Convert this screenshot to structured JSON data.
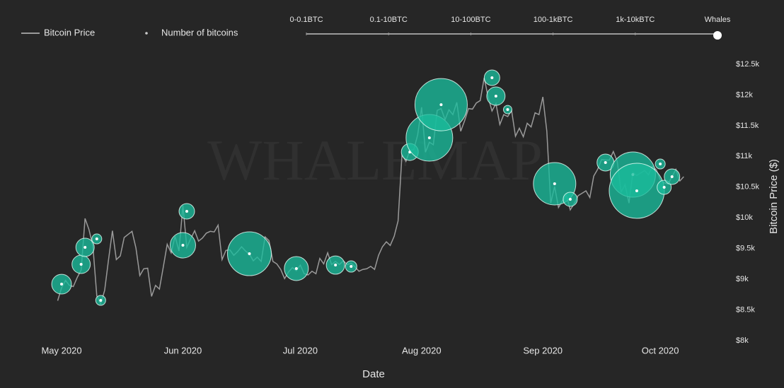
{
  "chart_data": {
    "type": "line-bubble",
    "watermark": "WHALEMAP",
    "x_label": "Date",
    "y_label": "Bitcoin Price ($)",
    "filter": {
      "options": [
        "0-0.1BTC",
        "0.1-10BTC",
        "10-100BTC",
        "100-1kBTC",
        "1k-10kBTC",
        "Whales"
      ],
      "selected": 5
    },
    "categories": [
      null,
      "May 2020",
      null,
      null,
      null,
      null,
      null,
      null,
      null,
      null,
      null,
      null,
      null,
      null,
      null,
      null,
      null,
      null,
      null,
      null,
      null,
      null,
      null,
      null,
      null,
      null,
      null,
      null,
      null,
      null,
      null,
      null,
      "Jun 2020",
      null,
      null,
      null,
      null,
      null,
      null,
      null,
      null,
      null,
      null,
      null,
      null,
      null,
      null,
      null,
      null,
      null,
      null,
      null,
      null,
      null,
      null,
      null,
      null,
      null,
      null,
      null,
      null,
      null,
      "Jul 2020",
      null,
      null,
      null,
      null,
      null,
      null,
      null,
      null,
      null,
      null,
      null,
      null,
      null,
      null,
      null,
      null,
      null,
      null,
      null,
      null,
      null,
      null,
      null,
      null,
      null,
      null,
      null,
      null,
      null,
      null,
      "Aug 2020",
      null,
      null,
      null,
      null,
      null,
      null,
      null,
      null,
      null,
      null,
      null,
      null,
      null,
      null,
      null,
      null,
      null,
      null,
      null,
      null,
      null,
      null,
      null,
      null,
      null,
      null,
      null,
      null,
      null,
      null,
      "Sep 2020",
      null,
      null,
      null,
      null,
      null,
      null,
      null,
      null,
      null,
      null,
      null,
      null,
      null,
      null,
      null,
      null,
      null,
      null,
      null,
      null,
      null,
      null,
      null,
      null,
      null,
      null,
      null,
      null,
      null,
      "Oct 2020",
      null,
      null,
      null,
      null,
      null,
      null
    ],
    "series": [
      {
        "name": "Bitcoin Price",
        "color": "#9a9a9a",
        "values": [
          8650,
          8860,
          8980,
          8900,
          8880,
          9030,
          9150,
          9990,
          9810,
          9540,
          8730,
          8600,
          8820,
          9320,
          9790,
          9320,
          9380,
          9680,
          9730,
          9780,
          9510,
          9060,
          9170,
          9180,
          8720,
          8900,
          8840,
          9200,
          9570,
          9430,
          9700,
          9460,
          10200,
          9520,
          9660,
          9790,
          9620,
          9670,
          9750,
          9780,
          9770,
          9880,
          9320,
          9470,
          9480,
          9390,
          9450,
          9530,
          9460,
          9410,
          9300,
          9360,
          9290,
          9690,
          9630,
          9290,
          9250,
          9160,
          9010,
          9120,
          9190,
          9140,
          9230,
          9090,
          9070,
          9130,
          9090,
          9340,
          9250,
          9430,
          9240,
          9290,
          9240,
          9300,
          9240,
          9260,
          9200,
          9130,
          9160,
          9170,
          9210,
          9160,
          9390,
          9530,
          9610,
          9550,
          9700,
          9950,
          11030,
          10920,
          11100,
          11110,
          11350,
          11800,
          11070,
          11230,
          11190,
          11750,
          11780,
          11600,
          11760,
          11680,
          11880,
          11410,
          11580,
          11780,
          11770,
          11870,
          11910,
          12280,
          11970,
          11740,
          11860,
          11520,
          11680,
          11650,
          11750,
          11330,
          11460,
          11320,
          11540,
          11480,
          11710,
          11680,
          11970,
          11410,
          10240,
          10510,
          10170,
          10280,
          10370,
          10130,
          10230,
          10360,
          10400,
          10440,
          10330,
          10680,
          10790,
          10950,
          10940,
          10940,
          11080,
          10920,
          10420,
          10540,
          10240,
          10740,
          10690,
          10730,
          10770,
          10700,
          10840,
          10780,
          10620,
          10570,
          10550,
          10670,
          10790,
          10600,
          10670
        ]
      },
      {
        "name": "Number of bitcoins",
        "color": "#1abc9c",
        "values": [
          null,
          8920,
          null,
          null,
          null,
          null,
          9243,
          9519,
          null,
          null,
          9657,
          8656,
          null,
          null,
          null,
          null,
          null,
          null,
          null,
          null,
          null,
          null,
          null,
          null,
          null,
          null,
          null,
          null,
          null,
          null,
          null,
          null,
          9553,
          10106,
          null,
          null,
          null,
          null,
          null,
          null,
          null,
          null,
          null,
          null,
          null,
          null,
          null,
          null,
          null,
          9415,
          null,
          null,
          null,
          null,
          null,
          null,
          null,
          null,
          null,
          null,
          null,
          9174,
          null,
          null,
          null,
          null,
          null,
          null,
          null,
          null,
          null,
          9231,
          null,
          null,
          null,
          9208,
          null,
          null,
          null,
          null,
          null,
          null,
          null,
          null,
          null,
          null,
          null,
          null,
          null,
          null,
          11072,
          null,
          null,
          null,
          null,
          11303,
          null,
          null,
          11843,
          null,
          null,
          null,
          null,
          null,
          null,
          null,
          null,
          null,
          null,
          null,
          null,
          12281,
          11982,
          null,
          null,
          11763,
          null,
          null,
          null,
          null,
          null,
          null,
          null,
          null,
          null,
          null,
          null,
          10555,
          null,
          null,
          null,
          10302,
          null,
          null,
          null,
          null,
          null,
          null,
          null,
          null,
          10900,
          null,
          null,
          null,
          null,
          null,
          null,
          10704,
          10440,
          null,
          null,
          null,
          null,
          null,
          10877,
          10497,
          null,
          10670,
          null,
          null,
          null
        ],
        "sizes": [
          null,
          1430,
          null,
          null,
          null,
          null,
          1230,
          1230,
          null,
          null,
          360,
          360,
          null,
          null,
          null,
          null,
          null,
          null,
          null,
          null,
          null,
          null,
          null,
          null,
          null,
          null,
          null,
          null,
          null,
          null,
          null,
          null,
          2370,
          880,
          null,
          null,
          null,
          null,
          null,
          null,
          null,
          null,
          null,
          null,
          null,
          null,
          null,
          null,
          null,
          7020,
          null,
          null,
          null,
          null,
          null,
          null,
          null,
          null,
          null,
          null,
          null,
          2110,
          null,
          null,
          null,
          null,
          null,
          null,
          null,
          null,
          null,
          1230,
          null,
          null,
          null,
          470,
          null,
          null,
          null,
          null,
          null,
          null,
          null,
          null,
          null,
          null,
          null,
          null,
          null,
          null,
          1050,
          null,
          null,
          null,
          null,
          7950,
          null,
          null,
          10000,
          null,
          null,
          null,
          null,
          null,
          null,
          null,
          null,
          null,
          null,
          null,
          null,
          880,
          1230,
          null,
          null,
          260,
          null,
          null,
          null,
          null,
          null,
          null,
          null,
          null,
          null,
          null,
          null,
          6570,
          null,
          null,
          null,
          730,
          null,
          null,
          null,
          null,
          null,
          null,
          null,
          null,
          1050,
          null,
          null,
          null,
          null,
          null,
          null,
          7480,
          11110,
          null,
          null,
          null,
          null,
          null,
          360,
          730,
          null,
          880,
          null,
          null,
          null
        ]
      }
    ],
    "ylim": [
      8000,
      12500
    ],
    "yticks": [
      {
        "value": 8000,
        "label": "$8k"
      },
      {
        "value": 8500,
        "label": "$8.5k"
      },
      {
        "value": 9000,
        "label": "$9k"
      },
      {
        "value": 9500,
        "label": "$9.5k"
      },
      {
        "value": 10000,
        "label": "$10k"
      },
      {
        "value": 10500,
        "label": "$10.5k"
      },
      {
        "value": 11000,
        "label": "$11k"
      },
      {
        "value": 11500,
        "label": "$11.5k"
      },
      {
        "value": 12000,
        "label": "$12k"
      },
      {
        "value": 12500,
        "label": "$12.5k"
      }
    ]
  }
}
